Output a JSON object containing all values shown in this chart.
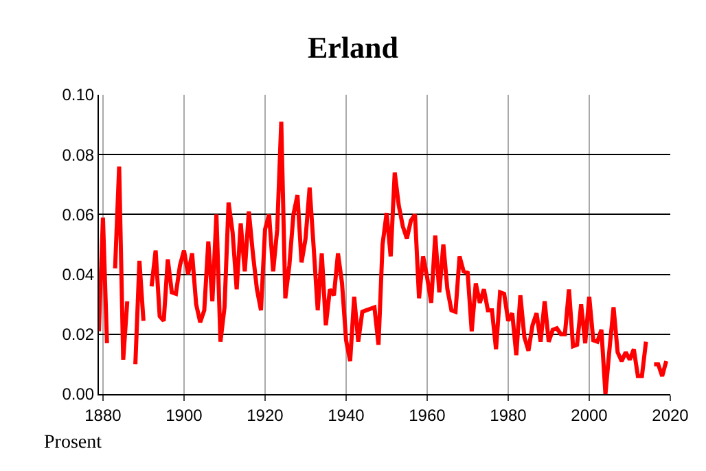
{
  "chart_data": {
    "type": "line",
    "title": "Erland",
    "ylabel": "Prosent",
    "x": [
      1879,
      1880,
      1881,
      1882,
      1883,
      1884,
      1885,
      1886,
      1887,
      1888,
      1889,
      1890,
      1891,
      1892,
      1893,
      1894,
      1895,
      1896,
      1897,
      1898,
      1899,
      1900,
      1901,
      1902,
      1903,
      1904,
      1905,
      1906,
      1907,
      1908,
      1909,
      1910,
      1911,
      1912,
      1913,
      1914,
      1915,
      1916,
      1917,
      1918,
      1919,
      1920,
      1921,
      1922,
      1923,
      1924,
      1925,
      1926,
      1927,
      1928,
      1929,
      1930,
      1931,
      1932,
      1933,
      1934,
      1935,
      1936,
      1937,
      1938,
      1939,
      1940,
      1941,
      1942,
      1943,
      1944,
      1945,
      1946,
      1947,
      1948,
      1949,
      1950,
      1951,
      1952,
      1953,
      1954,
      1955,
      1956,
      1957,
      1958,
      1959,
      1960,
      1961,
      1962,
      1963,
      1964,
      1965,
      1966,
      1967,
      1968,
      1969,
      1970,
      1971,
      1972,
      1973,
      1974,
      1975,
      1976,
      1977,
      1978,
      1979,
      1980,
      1981,
      1982,
      1983,
      1984,
      1985,
      1986,
      1987,
      1988,
      1989,
      1990,
      1991,
      1992,
      1993,
      1994,
      1995,
      1996,
      1997,
      1998,
      1999,
      2000,
      2001,
      2002,
      2003,
      2004,
      2005,
      2006,
      2007,
      2008,
      2009,
      2010,
      2011,
      2012,
      2013,
      2014,
      2015,
      2016,
      2017,
      2018,
      2019
    ],
    "series": [
      {
        "color": "#ff0000",
        "values": [
          0.021,
          0.059,
          0.017,
          null,
          0.042,
          0.076,
          0.0115,
          0.031,
          null,
          0.01,
          0.0445,
          0.0245,
          null,
          0.036,
          0.048,
          0.026,
          0.0245,
          0.045,
          0.034,
          0.0335,
          0.043,
          0.048,
          0.04,
          0.047,
          0.03,
          0.024,
          0.028,
          0.051,
          0.031,
          0.06,
          0.0175,
          0.029,
          0.064,
          0.054,
          0.035,
          0.057,
          0.041,
          0.061,
          0.047,
          0.035,
          0.028,
          0.055,
          0.06,
          0.041,
          0.055,
          0.091,
          0.032,
          0.043,
          0.06,
          0.0665,
          0.044,
          0.052,
          0.069,
          0.049,
          0.028,
          0.047,
          0.023,
          0.035,
          0.033,
          0.047,
          0.037,
          0.018,
          0.011,
          0.0325,
          0.0175,
          0.0275,
          0.028,
          0.0285,
          0.029,
          0.0165,
          0.05,
          0.0605,
          0.046,
          0.074,
          0.063,
          0.056,
          0.052,
          0.058,
          0.06,
          0.032,
          0.046,
          0.039,
          0.0305,
          0.053,
          0.034,
          0.05,
          0.035,
          0.028,
          0.0275,
          0.046,
          0.041,
          0.0405,
          0.021,
          0.037,
          0.0305,
          0.035,
          0.028,
          0.028,
          0.015,
          0.034,
          0.0335,
          0.0245,
          0.027,
          0.013,
          0.033,
          0.019,
          0.0145,
          0.023,
          0.027,
          0.0175,
          0.031,
          0.0175,
          0.0215,
          0.022,
          0.02,
          0.02,
          0.035,
          0.016,
          0.0165,
          0.03,
          0.017,
          0.0325,
          0.018,
          0.0175,
          0.0215,
          0.0,
          0.015,
          0.029,
          0.014,
          0.011,
          0.014,
          0.0115,
          0.015,
          0.006,
          0.006,
          0.0175,
          null,
          0.01,
          0.01,
          0.006,
          0.011
        ]
      }
    ],
    "xlim": [
      1879,
      2020
    ],
    "xticks": [
      1880,
      1900,
      1920,
      1940,
      1960,
      1980,
      2000,
      2020
    ],
    "ylim": [
      0,
      0.1
    ],
    "yticks": [
      {
        "value": 0,
        "label": "0.00"
      },
      {
        "value": 0.02,
        "label": "0.02"
      },
      {
        "value": 0.04,
        "label": "0.04"
      },
      {
        "value": 0.06,
        "label": "0.06"
      },
      {
        "value": 0.08,
        "label": "0.08"
      },
      {
        "value": 0.1,
        "label": "0.10"
      }
    ],
    "grid": true,
    "marker": "none",
    "line_style": "solid"
  }
}
